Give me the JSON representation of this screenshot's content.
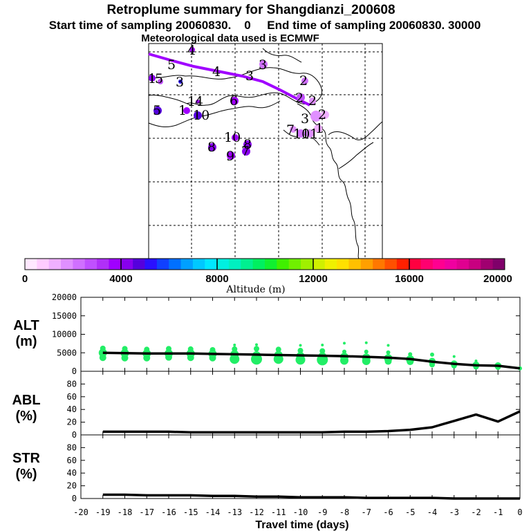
{
  "header": {
    "title": "Retroplume summary for Shangdianzi_200608",
    "subtitle": "Start time of sampling 20060830.    0     End time of sampling 20060830. 30000",
    "met_line": "Meteorological data used is ECMWF"
  },
  "map": {
    "labels": [
      "1",
      "2",
      "3",
      "4",
      "5",
      "6",
      "7",
      "8",
      "9",
      "10",
      "11",
      "12",
      "13",
      "14",
      "15"
    ],
    "trajectory_color": "#a000ff"
  },
  "colorbar": {
    "xlabel": "Altitude (m)",
    "ticks": [
      "0",
      "4000",
      "8000",
      "12000",
      "16000",
      "20000"
    ],
    "colors": [
      "#ffe8ff",
      "#ffccff",
      "#f0b0ff",
      "#e090ff",
      "#d070ff",
      "#c050ff",
      "#b030f8",
      "#a000ff",
      "#8800ee",
      "#5500dd",
      "#2a10ff",
      "#1040ff",
      "#0070ff",
      "#00a0ff",
      "#00c8ff",
      "#00e8ff",
      "#00f0e0",
      "#00f0c0",
      "#00f090",
      "#00f060",
      "#10f030",
      "#40f000",
      "#70f000",
      "#a0f000",
      "#d0f000",
      "#f0f000",
      "#ffe000",
      "#ffc000",
      "#ffa000",
      "#ff7800",
      "#ff5000",
      "#ff2000",
      "#ff0040",
      "#ff0070",
      "#ff0090",
      "#f000a0",
      "#e00090",
      "#c80080",
      "#a00070",
      "#80006a"
    ]
  },
  "chart_data": [
    {
      "type": "line",
      "id": "ALT",
      "panel_label": "ALT",
      "panel_unit": "(m)",
      "x": [
        -19,
        -18,
        -17,
        -16,
        -15,
        -14,
        -13,
        -12,
        -11,
        -10,
        -9,
        -8,
        -7,
        -6,
        -5,
        -4,
        -3,
        -2,
        -1,
        0
      ],
      "values": [
        5000,
        4900,
        4800,
        4800,
        4800,
        4700,
        4600,
        4500,
        4400,
        4300,
        4200,
        4100,
        3900,
        3700,
        3300,
        2600,
        2000,
        1600,
        1500,
        800
      ],
      "ylim": [
        0,
        20000
      ],
      "yticks": [
        "0",
        "5000",
        "10000",
        "15000",
        "20000"
      ],
      "scatter_color": "#22ee66",
      "scatter": [
        {
          "x": -19,
          "y": 5000,
          "s": 6
        },
        {
          "x": -19,
          "y": 3700,
          "s": 5
        },
        {
          "x": -19,
          "y": 6200,
          "s": 4
        },
        {
          "x": -18,
          "y": 4900,
          "s": 6
        },
        {
          "x": -18,
          "y": 3600,
          "s": 5
        },
        {
          "x": -18,
          "y": 6100,
          "s": 4
        },
        {
          "x": -17,
          "y": 4800,
          "s": 6
        },
        {
          "x": -17,
          "y": 3600,
          "s": 5
        },
        {
          "x": -17,
          "y": 5900,
          "s": 4
        },
        {
          "x": -16,
          "y": 4800,
          "s": 6
        },
        {
          "x": -16,
          "y": 3800,
          "s": 5
        },
        {
          "x": -16,
          "y": 6100,
          "s": 4
        },
        {
          "x": -15,
          "y": 4800,
          "s": 6
        },
        {
          "x": -15,
          "y": 3700,
          "s": 5
        },
        {
          "x": -15,
          "y": 6000,
          "s": 4
        },
        {
          "x": -14,
          "y": 4700,
          "s": 6
        },
        {
          "x": -14,
          "y": 3600,
          "s": 5
        },
        {
          "x": -14,
          "y": 5800,
          "s": 4
        },
        {
          "x": -13,
          "y": 4600,
          "s": 6
        },
        {
          "x": -13,
          "y": 3300,
          "s": 7
        },
        {
          "x": -13,
          "y": 6000,
          "s": 4
        },
        {
          "x": -13,
          "y": 7100,
          "s": 2
        },
        {
          "x": -12,
          "y": 4300,
          "s": 6
        },
        {
          "x": -12,
          "y": 3300,
          "s": 8
        },
        {
          "x": -12,
          "y": 6100,
          "s": 4
        },
        {
          "x": -12,
          "y": 7200,
          "s": 2
        },
        {
          "x": -11,
          "y": 4400,
          "s": 6
        },
        {
          "x": -11,
          "y": 3300,
          "s": 7
        },
        {
          "x": -11,
          "y": 5900,
          "s": 4
        },
        {
          "x": -10,
          "y": 4100,
          "s": 6
        },
        {
          "x": -10,
          "y": 3100,
          "s": 7
        },
        {
          "x": -10,
          "y": 5600,
          "s": 4
        },
        {
          "x": -10,
          "y": 7000,
          "s": 2
        },
        {
          "x": -9,
          "y": 4000,
          "s": 6
        },
        {
          "x": -9,
          "y": 3100,
          "s": 8
        },
        {
          "x": -9,
          "y": 5500,
          "s": 4
        },
        {
          "x": -9,
          "y": 7100,
          "s": 2
        },
        {
          "x": -8,
          "y": 3900,
          "s": 6
        },
        {
          "x": -8,
          "y": 2900,
          "s": 6
        },
        {
          "x": -8,
          "y": 5300,
          "s": 3
        },
        {
          "x": -8,
          "y": 7600,
          "s": 2
        },
        {
          "x": -7,
          "y": 3700,
          "s": 6
        },
        {
          "x": -7,
          "y": 2800,
          "s": 6
        },
        {
          "x": -7,
          "y": 5300,
          "s": 3
        },
        {
          "x": -7,
          "y": 7700,
          "s": 2
        },
        {
          "x": -6,
          "y": 3500,
          "s": 6
        },
        {
          "x": -6,
          "y": 2700,
          "s": 5
        },
        {
          "x": -6,
          "y": 5100,
          "s": 3
        },
        {
          "x": -6,
          "y": 7000,
          "s": 2
        },
        {
          "x": -5,
          "y": 3200,
          "s": 6
        },
        {
          "x": -5,
          "y": 2600,
          "s": 5
        },
        {
          "x": -5,
          "y": 4600,
          "s": 3
        },
        {
          "x": -4,
          "y": 2700,
          "s": 5
        },
        {
          "x": -4,
          "y": 1800,
          "s": 4
        },
        {
          "x": -4,
          "y": 4500,
          "s": 3
        },
        {
          "x": -3,
          "y": 2000,
          "s": 5
        },
        {
          "x": -3,
          "y": 1500,
          "s": 4
        },
        {
          "x": -3,
          "y": 4000,
          "s": 2
        },
        {
          "x": -2,
          "y": 1700,
          "s": 5
        },
        {
          "x": -2,
          "y": 1200,
          "s": 4
        },
        {
          "x": -2,
          "y": 2800,
          "s": 2
        },
        {
          "x": -1,
          "y": 1500,
          "s": 5
        },
        {
          "x": -1,
          "y": 1100,
          "s": 4
        },
        {
          "x": 0,
          "y": 800,
          "s": 3
        }
      ]
    },
    {
      "type": "line",
      "id": "ABL",
      "panel_label": "ABL",
      "panel_unit": "(%)",
      "x": [
        -19,
        -18,
        -17,
        -16,
        -15,
        -14,
        -13,
        -12,
        -11,
        -10,
        -9,
        -8,
        -7,
        -6,
        -5,
        -4,
        -3,
        -2,
        -1,
        0
      ],
      "values": [
        5,
        5,
        5,
        5,
        4,
        4,
        4,
        4,
        4,
        4,
        4,
        5,
        5,
        6,
        8,
        12,
        22,
        32,
        21,
        37
      ],
      "ylim": [
        0,
        100
      ],
      "yticks": [
        "0",
        "20",
        "40",
        "60",
        "80"
      ]
    },
    {
      "type": "line",
      "id": "STR",
      "panel_label": "STR",
      "panel_unit": "(%)",
      "x": [
        -19,
        -18,
        -17,
        -16,
        -15,
        -14,
        -13,
        -12,
        -11,
        -10,
        -9,
        -8,
        -7,
        -6,
        -5,
        -4,
        -3,
        -2,
        -1,
        0
      ],
      "values": [
        6,
        6,
        5,
        5,
        5,
        4,
        4,
        3,
        3,
        2,
        2,
        2,
        1,
        1,
        1,
        1,
        0,
        0,
        0,
        0
      ],
      "ylim": [
        0,
        100
      ],
      "yticks": [
        "0",
        "20",
        "40",
        "60",
        "80"
      ],
      "xlabel": "Travel time (days)",
      "xticks": [
        "-20",
        "-19",
        "-18",
        "-17",
        "-16",
        "-15",
        "-14",
        "-13",
        "-12",
        "-11",
        "-10",
        "-9",
        "-8",
        "-7",
        "-6",
        "-5",
        "-4",
        "-3",
        "-2",
        "-1",
        "0"
      ]
    }
  ]
}
